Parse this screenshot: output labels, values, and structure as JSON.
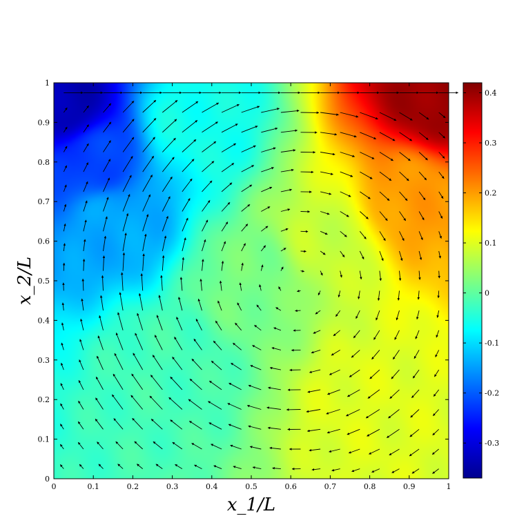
{
  "chart_data": {
    "type": "heatmap",
    "subtype": "pseudocolor field with velocity vector overlay",
    "xlabel": "x_1/L",
    "ylabel": "x_2/L",
    "xlim": [
      0,
      1
    ],
    "ylim": [
      0,
      1
    ],
    "xticks": [
      "0",
      "0.1",
      "0.2",
      "0.3",
      "0.4",
      "0.5",
      "0.6",
      "0.7",
      "0.8",
      "0.9",
      "1"
    ],
    "yticks": [
      "0",
      "0.1",
      "0.2",
      "0.3",
      "0.4",
      "0.5",
      "0.6",
      "0.7",
      "0.8",
      "0.9",
      "1"
    ],
    "colorbar": {
      "colormap": "jet",
      "clim": [
        -0.37,
        0.42
      ],
      "ticks": [
        "-0.3",
        "-0.2",
        "-0.1",
        "0",
        "0.1",
        "0.2",
        "0.3",
        "0.4"
      ],
      "tick_values": [
        -0.3,
        -0.2,
        -0.1,
        0,
        0.1,
        0.2,
        0.3,
        0.4
      ]
    },
    "field_description": "lid-driven cavity: lid moves right along x2=1; primary vortex centred near (0.6, 0.5)",
    "field_samples": [
      {
        "x": 0.03,
        "y": 0.95,
        "value": -0.33
      },
      {
        "x": 0.1,
        "y": 0.8,
        "value": -0.22
      },
      {
        "x": 0.15,
        "y": 0.65,
        "value": -0.14
      },
      {
        "x": 0.35,
        "y": 0.9,
        "value": -0.06
      },
      {
        "x": 0.3,
        "y": 0.3,
        "value": -0.02
      },
      {
        "x": 0.5,
        "y": 0.5,
        "value": 0.02
      },
      {
        "x": 0.7,
        "y": 0.6,
        "value": 0.08
      },
      {
        "x": 0.8,
        "y": 0.2,
        "value": 0.1
      },
      {
        "x": 0.9,
        "y": 0.7,
        "value": 0.2
      },
      {
        "x": 0.97,
        "y": 0.97,
        "value": 0.4
      }
    ],
    "vector_grid": {
      "nx": 20,
      "ny": 20,
      "vortex_center": [
        0.62,
        0.5
      ],
      "lid_velocity": 1
    }
  },
  "colors": {
    "arrow": "#000000",
    "axis": "#000000",
    "background": "#ffffff"
  }
}
